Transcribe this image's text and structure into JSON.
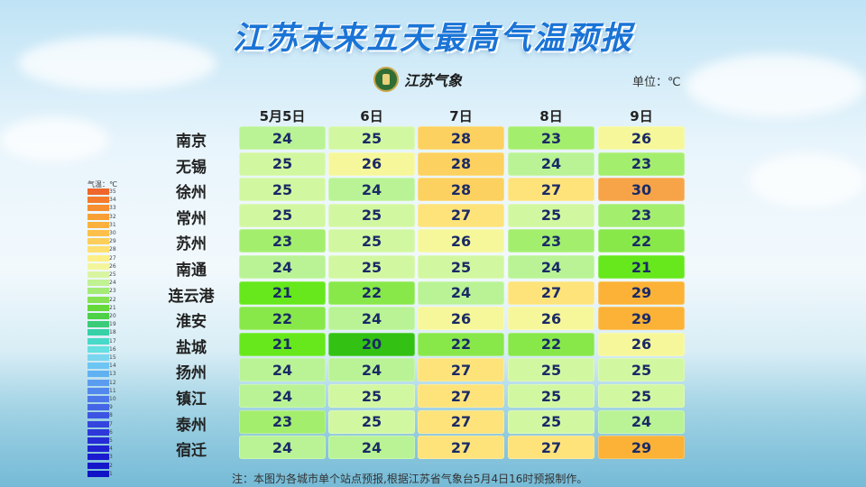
{
  "title": "江苏未来五天最高气温预报",
  "logo_text": "江苏气象",
  "unit_label": "单位：℃",
  "legend_title": "气温：℃",
  "note": "注：本图为各城市单个站点预报,根据江苏省气象台5月4日16时预报制作。",
  "chart_data": {
    "type": "heatmap",
    "columns": [
      "5月5日",
      "6日",
      "7日",
      "8日",
      "9日"
    ],
    "rows": [
      {
        "city": "南京",
        "values": [
          24,
          25,
          28,
          23,
          26
        ]
      },
      {
        "city": "无锡",
        "values": [
          25,
          26,
          28,
          24,
          23
        ]
      },
      {
        "city": "徐州",
        "values": [
          25,
          24,
          28,
          27,
          30
        ]
      },
      {
        "city": "常州",
        "values": [
          25,
          25,
          27,
          25,
          23
        ]
      },
      {
        "city": "苏州",
        "values": [
          23,
          25,
          26,
          23,
          22
        ]
      },
      {
        "city": "南通",
        "values": [
          24,
          25,
          25,
          24,
          21
        ]
      },
      {
        "city": "连云港",
        "values": [
          21,
          22,
          24,
          27,
          29
        ]
      },
      {
        "city": "淮安",
        "values": [
          22,
          24,
          26,
          26,
          29
        ]
      },
      {
        "city": "盐城",
        "values": [
          21,
          20,
          22,
          22,
          26
        ]
      },
      {
        "city": "扬州",
        "values": [
          24,
          24,
          27,
          25,
          25
        ]
      },
      {
        "city": "镇江",
        "values": [
          24,
          25,
          27,
          25,
          25
        ]
      },
      {
        "city": "泰州",
        "values": [
          23,
          25,
          27,
          25,
          24
        ]
      },
      {
        "city": "宿迁",
        "values": [
          24,
          24,
          27,
          27,
          29
        ]
      }
    ],
    "color_scale": {
      "20": "#33c213",
      "21": "#66e81c",
      "22": "#88e84a",
      "23": "#a4ee6e",
      "24": "#b9f395",
      "25": "#d2f7a1",
      "26": "#f6f79a",
      "27": "#fde37a",
      "28": "#fdd15f",
      "29": "#fbb236",
      "30": "#f7a448"
    },
    "legend": {
      "values": [
        35,
        34,
        33,
        32,
        31,
        30,
        29,
        28,
        27,
        26,
        25,
        24,
        23,
        22,
        21,
        20,
        19,
        18,
        17,
        16,
        15,
        14,
        13,
        12,
        11,
        10,
        9,
        8,
        7,
        6,
        5,
        4,
        3,
        2,
        1
      ],
      "colors": [
        "#f0652a",
        "#f47a2c",
        "#f78e30",
        "#f9a035",
        "#fbb13e",
        "#fcc04a",
        "#fdcf5a",
        "#fee070",
        "#fdef88",
        "#f3f59c",
        "#d9f5a2",
        "#c0f193",
        "#a4eb76",
        "#86e253",
        "#66d93a",
        "#4cd147",
        "#3acb78",
        "#36d1a6",
        "#48d9c8",
        "#66e0e0",
        "#7ad6ef",
        "#6cc5f3",
        "#5fb1f2",
        "#5a9cf0",
        "#5288ee",
        "#4c77ea",
        "#4465e6",
        "#3c54e2",
        "#3445de",
        "#2d37da",
        "#262bd6",
        "#2022d2",
        "#1a1bce",
        "#1516ca",
        "#1012c6"
      ]
    }
  }
}
